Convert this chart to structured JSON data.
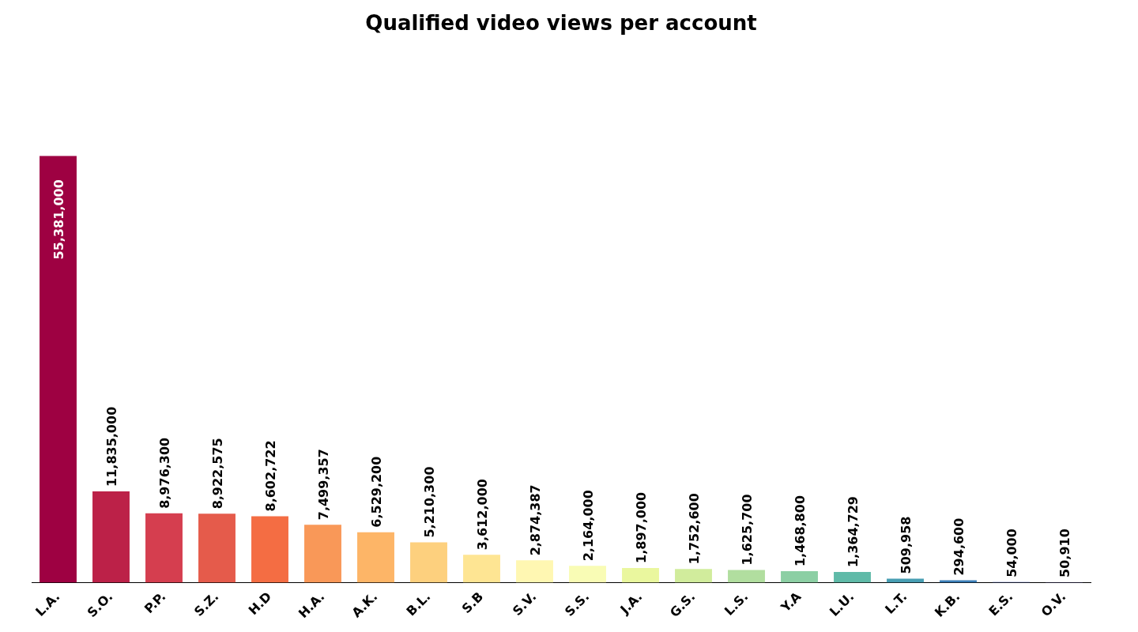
{
  "chart_data": {
    "type": "bar",
    "title": "Qualified video views per account",
    "categories": [
      "L.A.",
      "S.O.",
      "P.P.",
      "S.Z.",
      "H.D",
      "H.A.",
      "A.K.",
      "B.L.",
      "S.B",
      "S.V.",
      "S.S.",
      "J.A.",
      "G.S.",
      "L.S.",
      "Y.A",
      "L.U.",
      "L.T.",
      "K.B.",
      "E.S.",
      "O.V."
    ],
    "values": [
      55381000,
      11835000,
      8976300,
      8922575,
      8602722,
      7499357,
      6529200,
      5210300,
      3612000,
      2874387,
      2164000,
      1897000,
      1752600,
      1625700,
      1468800,
      1364729,
      509958,
      294600,
      54000,
      50910
    ],
    "colors": [
      "#9e0142",
      "#bc2148",
      "#d53e4f",
      "#e55b4b",
      "#f46d43",
      "#f99858",
      "#fdb567",
      "#fdd07e",
      "#fee593",
      "#fff7b2",
      "#f9fcb5",
      "#eaf79e",
      "#d1ec9c",
      "#b1de9f",
      "#8ccfa4",
      "#5fbaa8",
      "#479eb3",
      "#3a7eb8",
      "#4c62ad",
      "#5e4fa2"
    ],
    "value_labels": [
      "55,381,000",
      "11,835,000",
      "8,976,300",
      "8,922,575",
      "8,602,722",
      "7,499,357",
      "6,529,200",
      "5,210,300",
      "3,612,000",
      "2,874,387",
      "2,164,000",
      "1,897,000",
      "1,752,600",
      "1,625,700",
      "1,468,800",
      "1,364,729",
      "509,958",
      "294,600",
      "54,000",
      "50,910"
    ],
    "grid": false,
    "legend": false
  }
}
